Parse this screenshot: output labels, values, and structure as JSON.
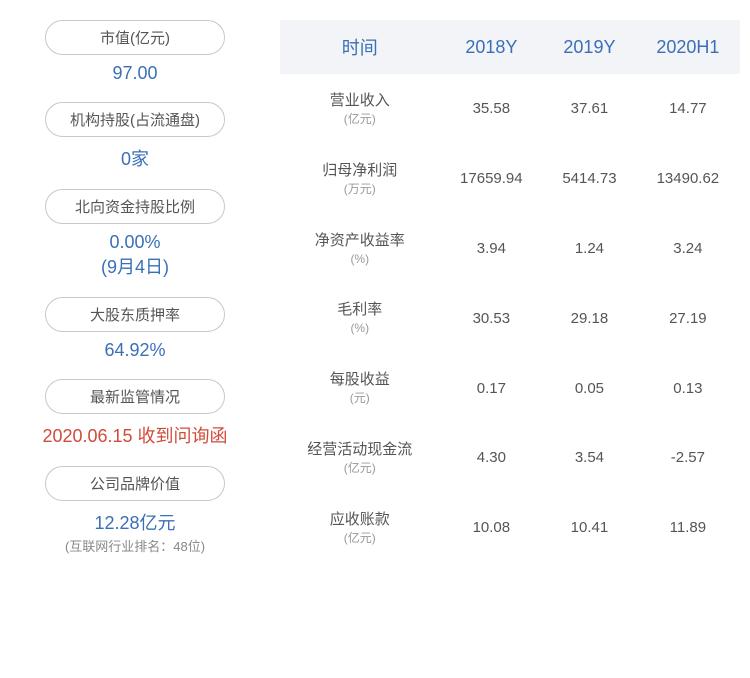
{
  "left": {
    "items": [
      {
        "label": "市值(亿元)",
        "value": "97.00",
        "valueColor": "#3a6fb8",
        "sub": ""
      },
      {
        "label": "机构持股(占流通盘)",
        "value": "0家",
        "valueColor": "#3a6fb8",
        "sub": ""
      },
      {
        "label": "北向资金持股比例",
        "value": "0.00%",
        "valueColor": "#3a6fb8",
        "sub": "(9月4日)"
      },
      {
        "label": "大股东质押率",
        "value": "64.92%",
        "valueColor": "#3a6fb8",
        "sub": ""
      },
      {
        "label": "最新监管情况",
        "value": "2020.06.15 收到问询函",
        "valueColor": "#d14b3a",
        "sub": ""
      },
      {
        "label": "公司品牌价值",
        "value": "12.28亿元",
        "valueColor": "#3a6fb8",
        "sub": "(互联网行业排名：48位)"
      }
    ]
  },
  "table": {
    "headers": [
      "时间",
      "2018Y",
      "2019Y",
      "2020H1"
    ],
    "rows": [
      {
        "label": "营业收入",
        "unit": "(亿元)",
        "values": [
          "35.58",
          "37.61",
          "14.77"
        ]
      },
      {
        "label": "归母净利润",
        "unit": "(万元)",
        "values": [
          "17659.94",
          "5414.73",
          "13490.62"
        ]
      },
      {
        "label": "净资产收益率",
        "unit": "(%)",
        "values": [
          "3.94",
          "1.24",
          "3.24"
        ]
      },
      {
        "label": "毛利率",
        "unit": "(%)",
        "values": [
          "30.53",
          "29.18",
          "27.19"
        ]
      },
      {
        "label": "每股收益",
        "unit": "(元)",
        "values": [
          "0.17",
          "0.05",
          "0.13"
        ]
      },
      {
        "label": "经营活动现金流",
        "unit": "(亿元)",
        "values": [
          "4.30",
          "3.54",
          "-2.57"
        ]
      },
      {
        "label": "应收账款",
        "unit": "(亿元)",
        "values": [
          "10.08",
          "10.41",
          "11.89"
        ]
      }
    ]
  },
  "colors": {
    "headerBg": "#f3f4f8",
    "headerText": "#3a6fb8",
    "blue": "#3a6fb8",
    "red": "#d14b3a",
    "gray": "#555555",
    "border": "#c8c8c8"
  }
}
